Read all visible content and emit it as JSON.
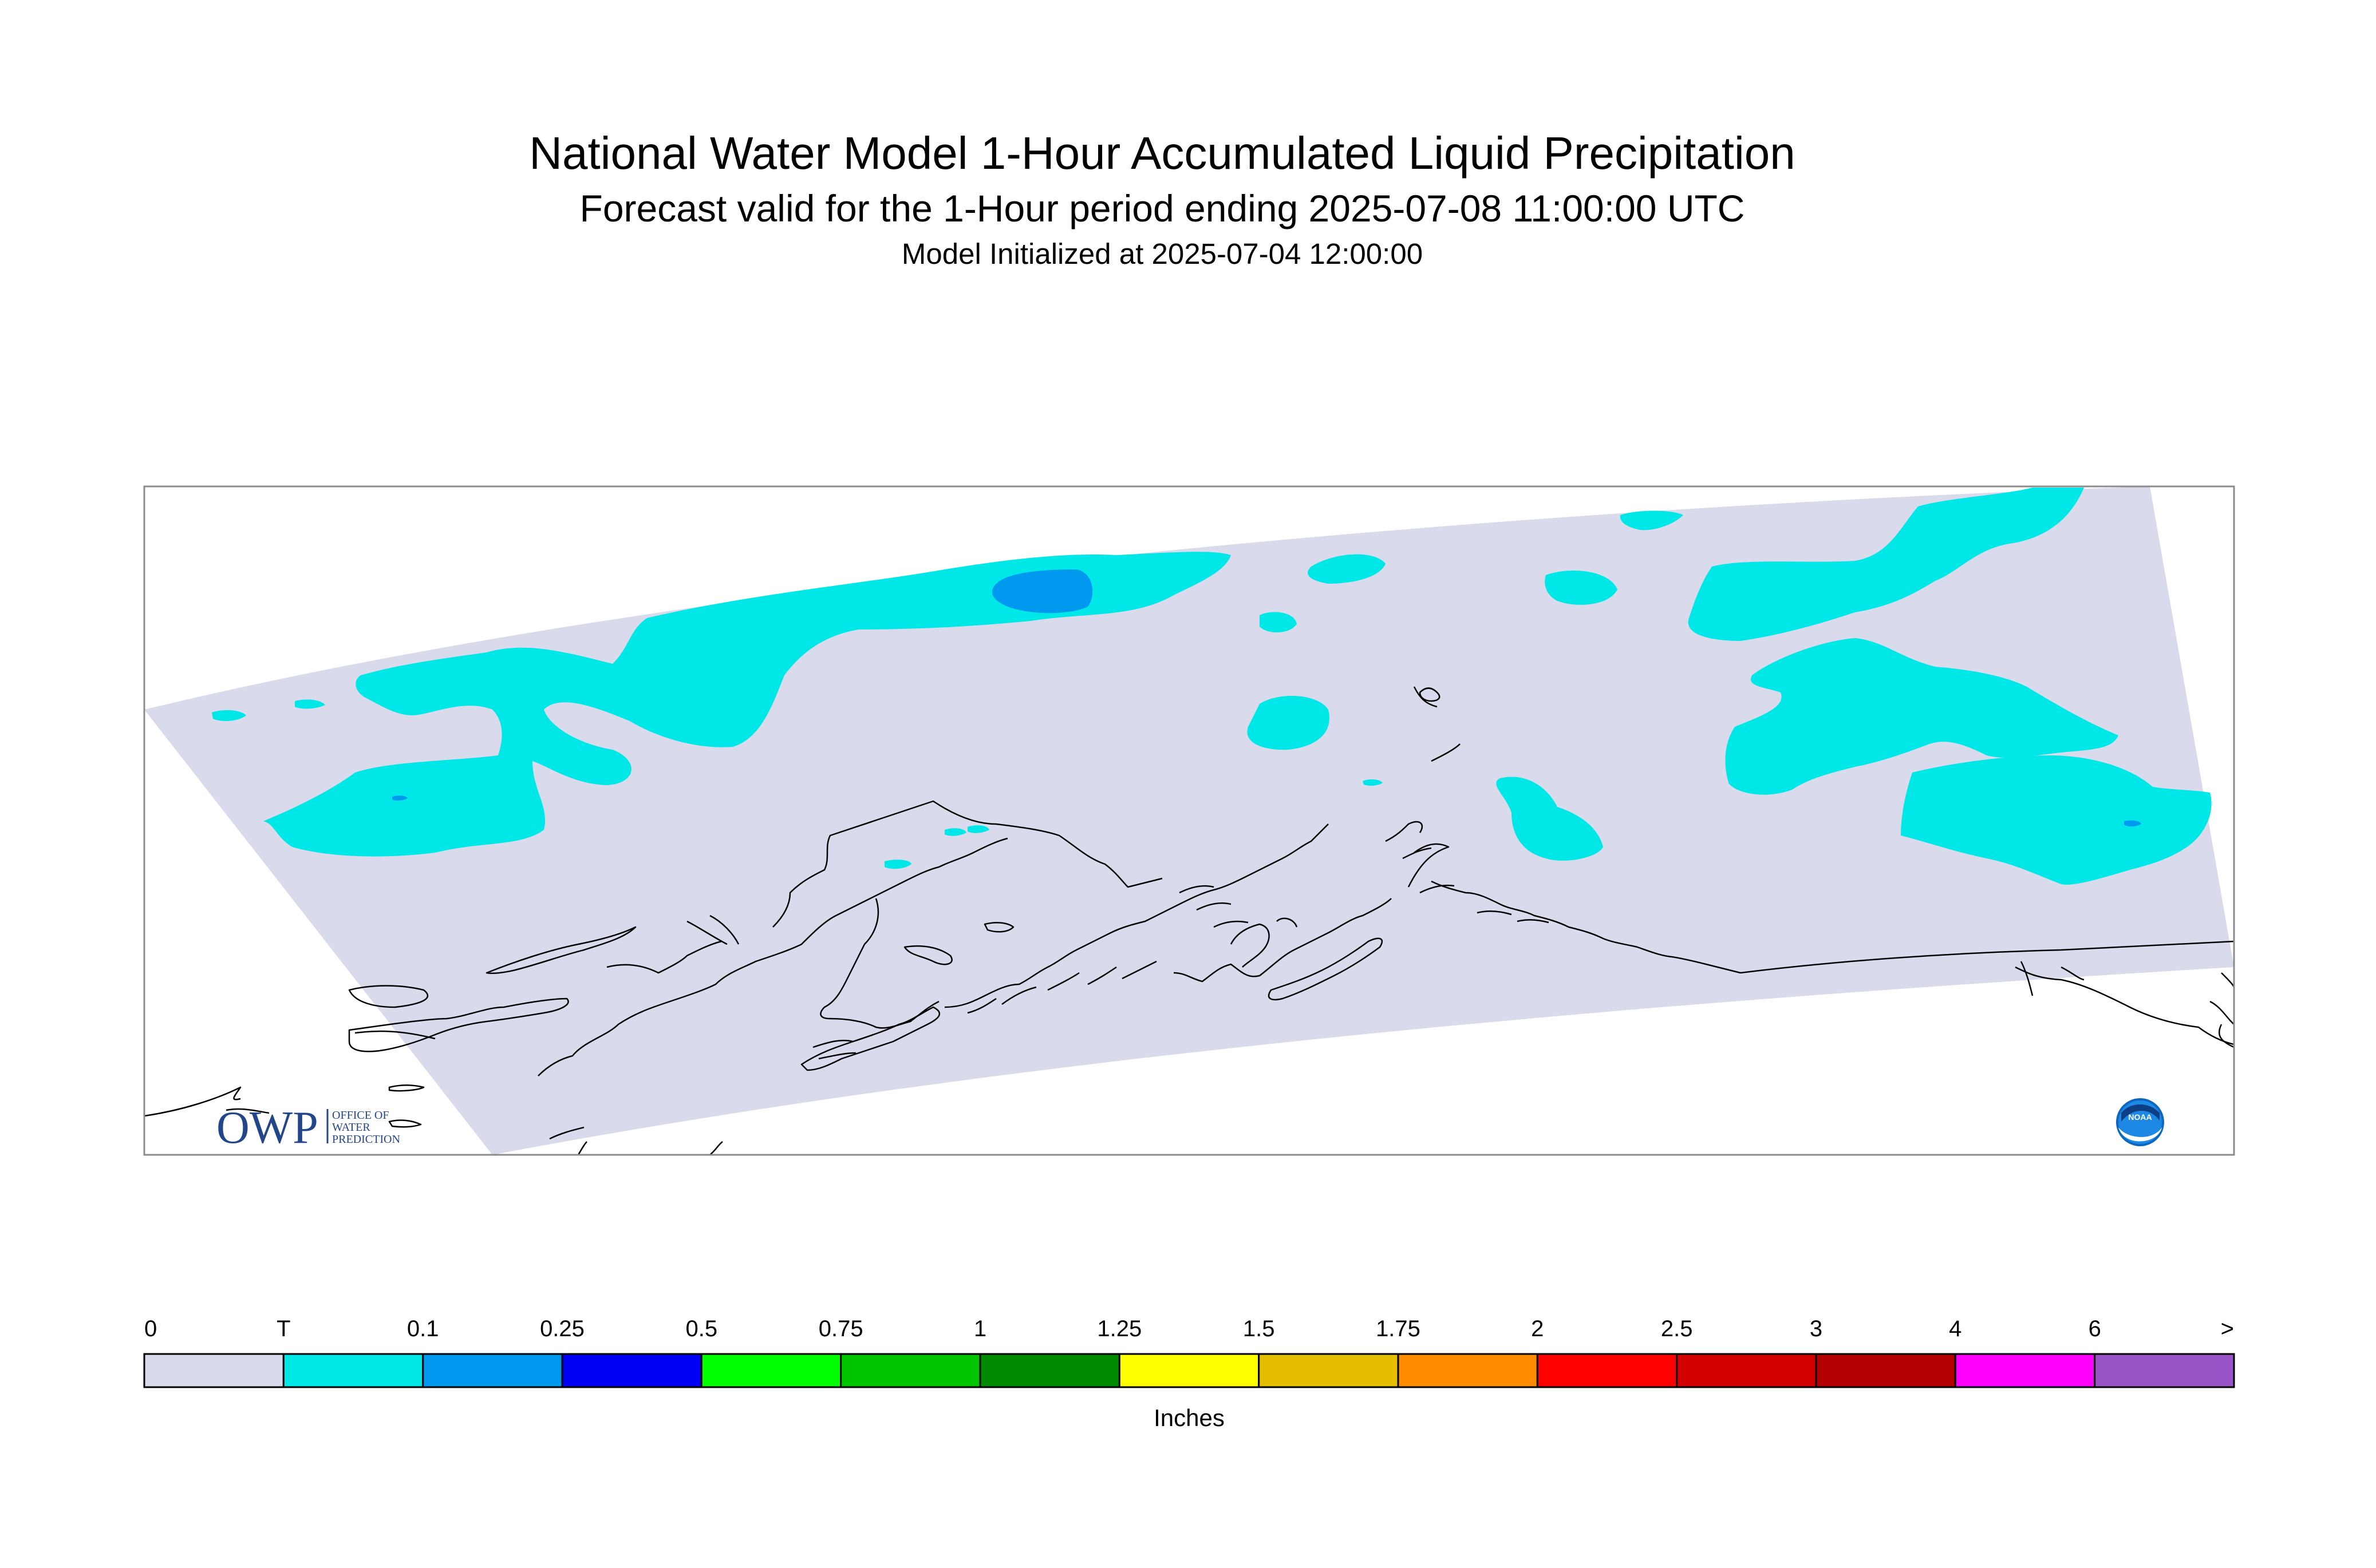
{
  "title": "National Water Model 1-Hour Accumulated Liquid Precipitation",
  "subtitle": "Forecast valid for the 1-Hour period ending 2025-07-08 11:00:00 UTC",
  "init_line": "Model Initialized at 2025-07-04 12:00:00",
  "logo": {
    "owp_text": "OWP",
    "office_lines": [
      "OFFICE OF",
      "WATER",
      "PREDICTION"
    ],
    "noaa_text": "NOAA"
  },
  "colors": {
    "domain": "#dadaed",
    "coast": "#000000",
    "frame": "#8c8c8c"
  },
  "legend": {
    "unit": "Inches",
    "ticks": [
      "0",
      "T",
      "0.1",
      "0.25",
      "0.5",
      "0.75",
      "1",
      "1.25",
      "1.5",
      "1.75",
      "2",
      "2.5",
      "3",
      "4",
      "6",
      ">"
    ],
    "colors": [
      "#dadaed",
      "#00e7e7",
      "#0099f0",
      "#0000f2",
      "#00ff00",
      "#00c600",
      "#008a00",
      "#ffff00",
      "#e5be00",
      "#ff8b00",
      "#ff0000",
      "#d30000",
      "#b50000",
      "#ff00ff",
      "#9955c8"
    ]
  }
}
